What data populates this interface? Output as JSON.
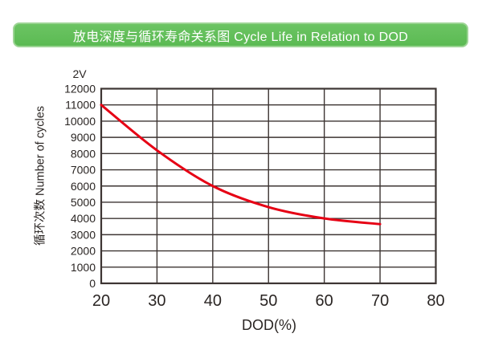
{
  "header": {
    "title": "放电深度与循环寿命关系图 Cycle Life in Relation to DOD",
    "bg_color": "#61bf5a",
    "border_color": "#9cd494",
    "text_color": "#ffffff"
  },
  "chart_data": {
    "type": "line",
    "title": "放电深度与循环寿命关系图 Cycle Life in Relation to DOD",
    "series_label": "2V",
    "xlabel": "DOD(%)",
    "ylabel": "循环次数 Number of cycles",
    "x": [
      20,
      30,
      40,
      50,
      60,
      70
    ],
    "y": [
      11000,
      8200,
      6000,
      4700,
      4000,
      3650
    ],
    "xlim": [
      20,
      80
    ],
    "ylim": [
      0,
      12000
    ],
    "x_ticks": [
      20,
      30,
      40,
      50,
      60,
      70,
      80
    ],
    "y_ticks": [
      0,
      1000,
      2000,
      3000,
      4000,
      5000,
      6000,
      7000,
      8000,
      9000,
      10000,
      11000,
      12000
    ],
    "grid": true,
    "legend_position": "none",
    "line_color": "#e60014",
    "grid_color": "#3d3533",
    "text_color": "#2a2523"
  }
}
